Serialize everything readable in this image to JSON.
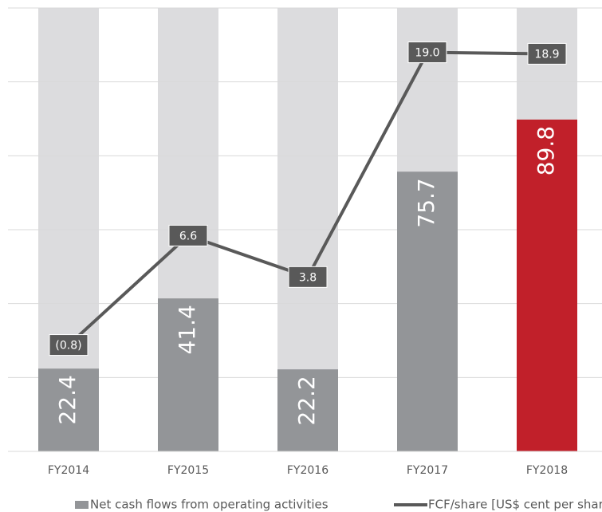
{
  "chart_data": {
    "type": "bar",
    "categories": [
      "FY2014",
      "FY2015",
      "FY2016",
      "FY2017",
      "FY2018"
    ],
    "series": [
      {
        "name": "Net cash flows from operating activities",
        "type": "bar",
        "color": "#939598",
        "colors": [
          "#939598",
          "#939598",
          "#939598",
          "#939598",
          "#c1202a"
        ],
        "values": [
          22.4,
          41.4,
          22.2,
          75.7,
          89.8
        ]
      },
      {
        "name": "FCF/share [US$ cent per share]",
        "type": "line",
        "axis": "y2",
        "color": "#595959",
        "values": [
          -0.8,
          6.6,
          3.8,
          19.0,
          18.9
        ],
        "value_labels": [
          "(0.8)",
          "6.6",
          "3.8",
          "19.0",
          "18.9"
        ]
      }
    ],
    "background_color": "#dcdcde",
    "ylim": [
      0,
      120
    ],
    "yticks": [
      0,
      20,
      40,
      60,
      80,
      100,
      120
    ],
    "y2lim": [
      -8,
      22
    ],
    "grid": true
  }
}
